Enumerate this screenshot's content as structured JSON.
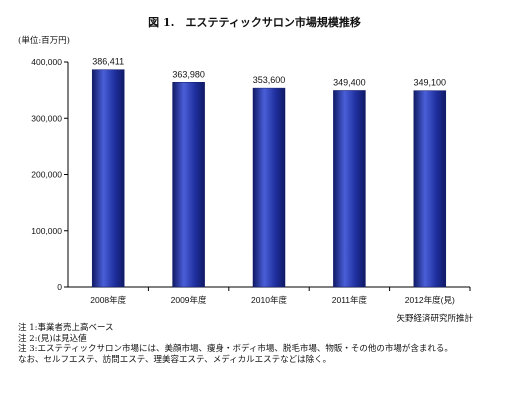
{
  "header": {
    "title": "図 1.　エステティックサロン市場規模推移",
    "unit": "(単位:百万円)"
  },
  "footer": {
    "source": "矢野経済研究所推計",
    "notes": [
      "注 1:事業者売上高ベース",
      "注 2:(見)は見込値",
      "注 3:エステティックサロン市場には、美顔市場、痩身・ボディ市場、脱毛市場、物販・その他の市場が含まれる。",
      "なお、セルフエステ、訪問エステ、理美容エステ、メディカルエステなどは除く。"
    ]
  },
  "colors": {
    "bar": "#1f2f9e",
    "bar_light": "#4a5fd8",
    "bar_dark": "#101a66",
    "axis": "#000000"
  },
  "chart_data": {
    "type": "bar",
    "title": "図 1.　エステティックサロン市場規模推移",
    "ylabel": "(単位:百万円)",
    "categories": [
      "2008年度",
      "2009年度",
      "2010年度",
      "2011年度",
      "2012年度(見)"
    ],
    "values": [
      386411,
      363980,
      353600,
      349400,
      349100
    ],
    "value_labels": [
      "386,411",
      "363,980",
      "353,600",
      "349,400",
      "349,100"
    ],
    "yticks": [
      0,
      100000,
      200000,
      300000,
      400000
    ],
    "ytick_labels": [
      "0",
      "100,000",
      "200,000",
      "300,000",
      "400,000"
    ],
    "ylim": [
      0,
      400000
    ],
    "grid": false,
    "legend": "none"
  }
}
